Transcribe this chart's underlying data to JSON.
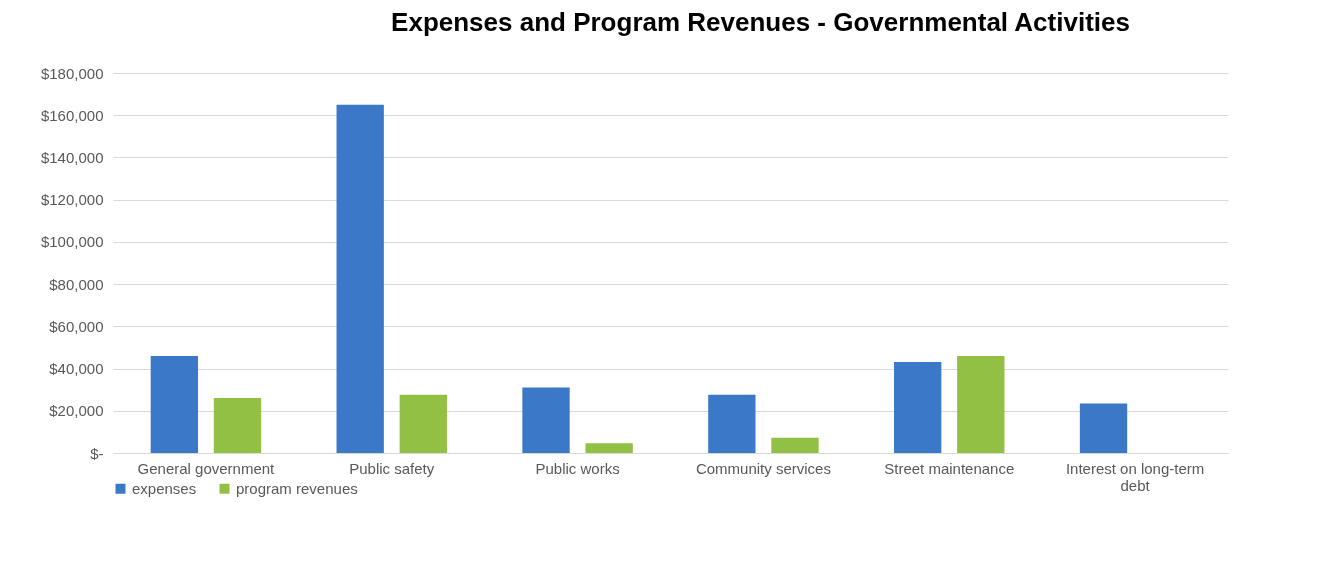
{
  "chart_data": {
    "type": "bar",
    "title": "Expenses and Program Revenues - Governmental Activities",
    "categories": [
      "General government",
      "Public safety",
      "Public works",
      "Community services",
      "Street maintenance",
      "Interest on long-term debt"
    ],
    "series": [
      {
        "name": "expenses",
        "color": "#3b78c8",
        "values": [
          46000,
          165000,
          31000,
          27600,
          43100,
          23500
        ]
      },
      {
        "name": "program revenues",
        "color": "#92c045",
        "values": [
          26000,
          27600,
          4600,
          7200,
          46000,
          null
        ]
      }
    ],
    "ylim": [
      0,
      180000
    ],
    "yticks": [
      {
        "value": 0,
        "label": "$-"
      },
      {
        "value": 20000,
        "label": "$20,000"
      },
      {
        "value": 40000,
        "label": "$40,000"
      },
      {
        "value": 60000,
        "label": "$60,000"
      },
      {
        "value": 80000,
        "label": "$80,000"
      },
      {
        "value": 100000,
        "label": "$100,000"
      },
      {
        "value": 120000,
        "label": "$120,000"
      },
      {
        "value": 140000,
        "label": "$140,000"
      },
      {
        "value": 160000,
        "label": "$160,000"
      },
      {
        "value": 180000,
        "label": "$180,000"
      }
    ],
    "grid": "y",
    "legend": "bottom"
  }
}
